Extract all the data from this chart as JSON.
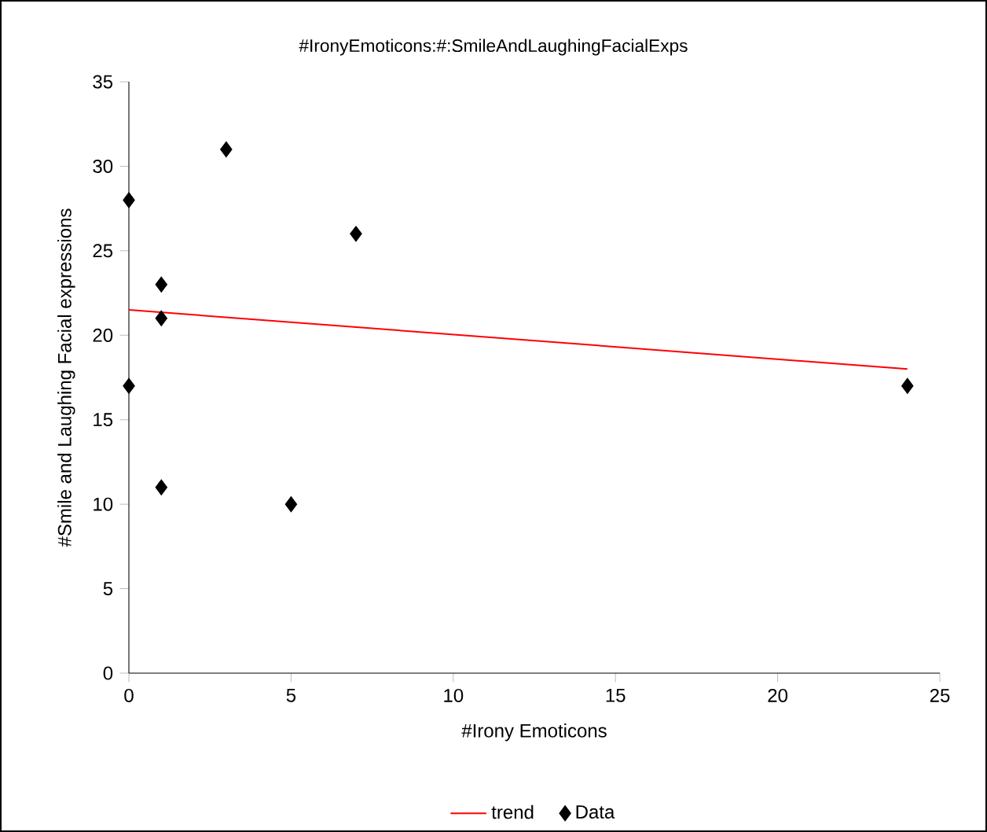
{
  "chart_data": {
    "type": "scatter",
    "title": "#IronyEmoticons:#:SmileAndLaughingFacialExps",
    "xlabel": "#Irony Emoticons",
    "ylabel": "#Smile and Laughing Facial expressions",
    "series": [
      {
        "name": "trend",
        "type": "line",
        "color": "#ff0000",
        "marker": "none",
        "line_style": "solid",
        "x": [
          0,
          24
        ],
        "values": [
          21.5,
          18
        ]
      },
      {
        "name": "Data",
        "color": "#000000",
        "marker": "diamond",
        "x": [
          0,
          0,
          1,
          1,
          1,
          3,
          5,
          7,
          24
        ],
        "values": [
          28,
          17,
          23,
          21,
          11,
          31,
          10,
          26,
          17
        ]
      }
    ],
    "xlim": [
      0,
      25
    ],
    "xticks": [
      0,
      5,
      10,
      15,
      20,
      25
    ],
    "ylim": [
      0,
      35
    ],
    "yticks": [
      0,
      5,
      10,
      15,
      20,
      25,
      30,
      35
    ],
    "grid": false,
    "legend": "bottom"
  }
}
